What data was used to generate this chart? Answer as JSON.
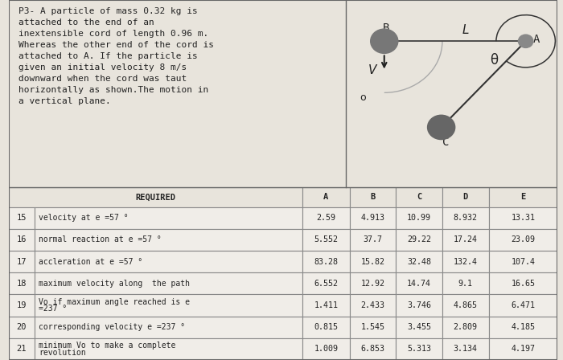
{
  "problem_text": "P3- A particle of mass 0.32 kg is\nattached to the end of an\ninextensible cord of length 0.96 m.\nWhereas the other end of the cord is\nattached to A. If the particle is\ngiven an initial velocity 8 m/s\ndownward when the cord was taut\nhorizontally as shown.The motion in\na vertical plane.",
  "rows": [
    [
      "15",
      "velocity at e =57 °",
      "2.59",
      "4.913",
      "10.99",
      "8.932",
      "13.31"
    ],
    [
      "16",
      "normal reaction at e =57 °",
      "5.552",
      "37.7",
      "29.22",
      "17.24",
      "23.09"
    ],
    [
      "17",
      "accleration at e =57 °",
      "83.28",
      "15.82",
      "32.48",
      "132.4",
      "107.4"
    ],
    [
      "18",
      "maximum velocity along  the path",
      "6.552",
      "12.92",
      "14.74",
      "9.1",
      "16.65"
    ],
    [
      "19",
      "Vo if maximum angle reached is e\n=237 °",
      "1.411",
      "2.433",
      "3.746",
      "4.865",
      "6.471"
    ],
    [
      "20",
      "corresponding velocity e =237 °",
      "0.815",
      "1.545",
      "3.455",
      "2.809",
      "4.185"
    ],
    [
      "21",
      "minimum Vo to make a complete\nrevolution",
      "1.009",
      "6.853",
      "5.313",
      "3.134",
      "4.197"
    ]
  ],
  "bg_paper": "#e8e4dc",
  "bg_white": "#f0ede8",
  "border_color": "#888888",
  "text_color": "#222222",
  "col_headers": [
    "A",
    "B",
    "C",
    "D",
    "E"
  ]
}
